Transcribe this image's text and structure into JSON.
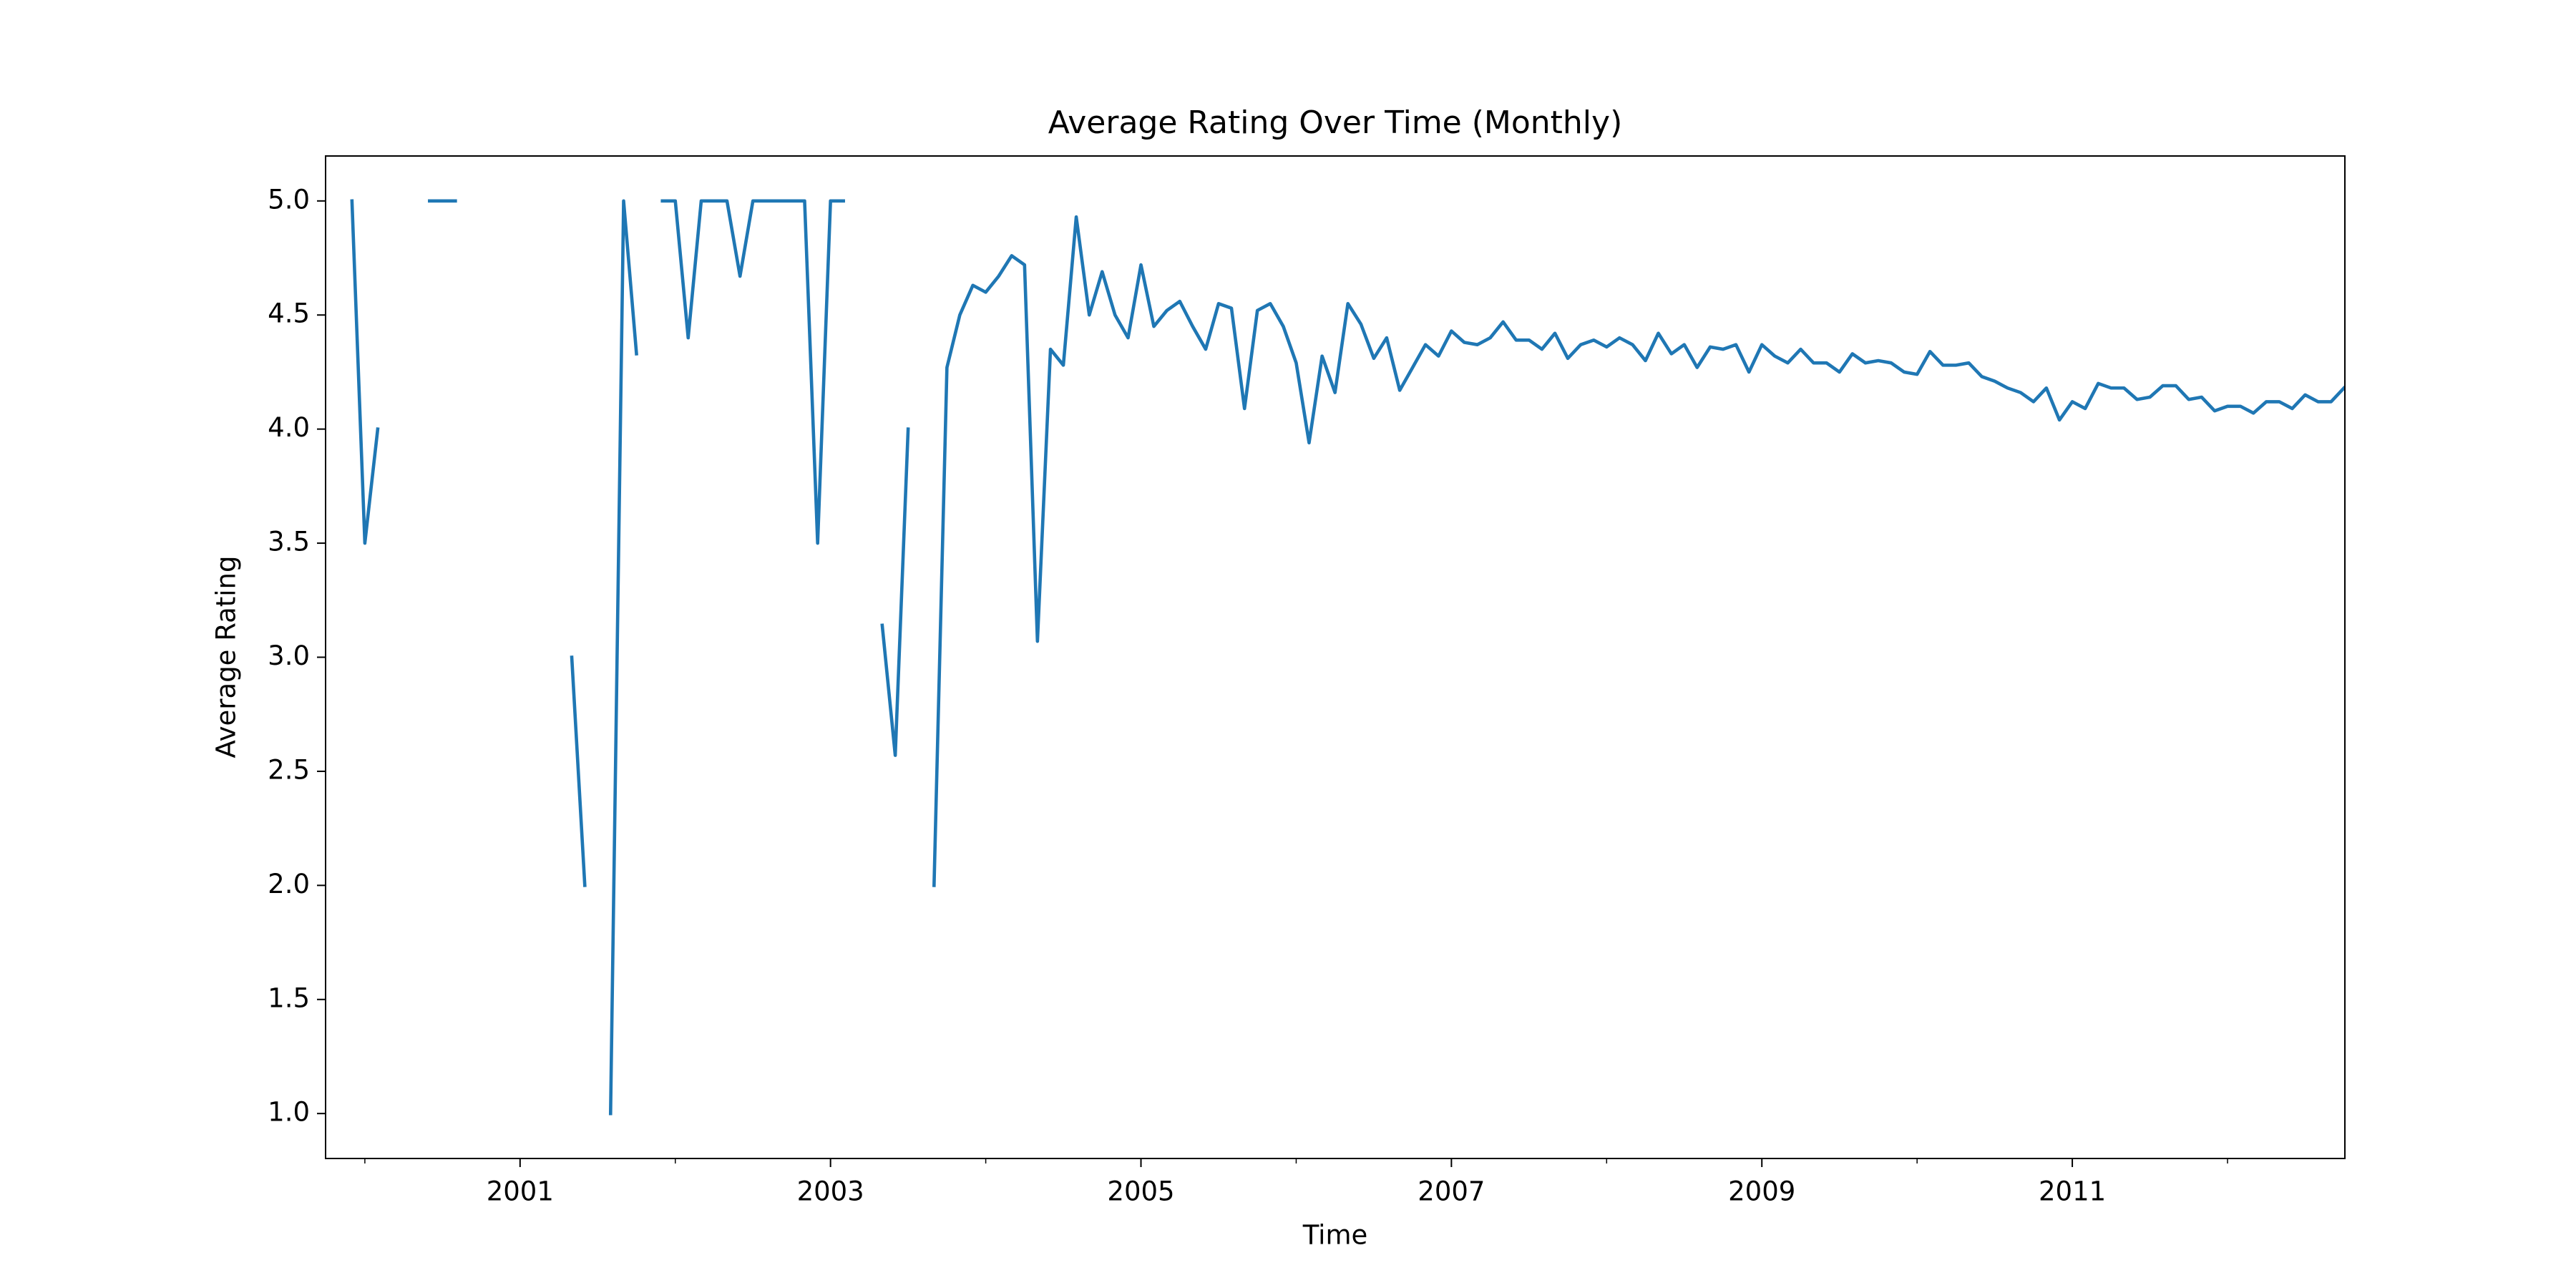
{
  "chart_data": {
    "type": "line",
    "title": "Average Rating Over Time (Monthly)",
    "x_label": "Time",
    "y_label": "Average Rating",
    "x": [
      1999.917,
      2000.0,
      2000.083,
      2000.167,
      2000.25,
      2000.333,
      2000.417,
      2000.5,
      2000.583,
      2000.667,
      2000.75,
      2000.833,
      2000.917,
      2001.0,
      2001.083,
      2001.167,
      2001.25,
      2001.333,
      2001.417,
      2001.5,
      2001.583,
      2001.667,
      2001.75,
      2001.833,
      2001.917,
      2002.0,
      2002.083,
      2002.167,
      2002.25,
      2002.333,
      2002.417,
      2002.5,
      2002.583,
      2002.667,
      2002.75,
      2002.833,
      2002.917,
      2003.0,
      2003.083,
      2003.167,
      2003.25,
      2003.333,
      2003.417,
      2003.5,
      2003.583,
      2003.667,
      2003.75,
      2003.833,
      2003.917,
      2004.0,
      2004.083,
      2004.167,
      2004.25,
      2004.333,
      2004.417,
      2004.5,
      2004.583,
      2004.667,
      2004.75,
      2004.833,
      2004.917,
      2005.0,
      2005.083,
      2005.167,
      2005.25,
      2005.333,
      2005.417,
      2005.5,
      2005.583,
      2005.667,
      2005.75,
      2005.833,
      2005.917,
      2006.0,
      2006.083,
      2006.167,
      2006.25,
      2006.333,
      2006.417,
      2006.5,
      2006.583,
      2006.667,
      2006.75,
      2006.833,
      2006.917,
      2007.0,
      2007.083,
      2007.167,
      2007.25,
      2007.333,
      2007.417,
      2007.5,
      2007.583,
      2007.667,
      2007.75,
      2007.833,
      2007.917,
      2008.0,
      2008.083,
      2008.167,
      2008.25,
      2008.333,
      2008.417,
      2008.5,
      2008.583,
      2008.667,
      2008.75,
      2008.833,
      2008.917,
      2009.0,
      2009.083,
      2009.167,
      2009.25,
      2009.333,
      2009.417,
      2009.5,
      2009.583,
      2009.667,
      2009.75,
      2009.833,
      2009.917,
      2010.0,
      2010.083,
      2010.167,
      2010.25,
      2010.333,
      2010.417,
      2010.5,
      2010.583,
      2010.667,
      2010.75,
      2010.833,
      2010.917,
      2011.0,
      2011.083,
      2011.167,
      2011.25,
      2011.333,
      2011.417,
      2011.5,
      2011.583,
      2011.667,
      2011.75,
      2011.833,
      2011.917,
      2012.0,
      2012.083,
      2012.167,
      2012.25,
      2012.333,
      2012.417,
      2012.5,
      2012.583,
      2012.667,
      2012.75
    ],
    "series": [
      {
        "color": "#1f77b4",
        "values": [
          5.0,
          3.5,
          4.0,
          null,
          null,
          null,
          5.0,
          5.0,
          5.0,
          null,
          null,
          null,
          null,
          null,
          null,
          null,
          null,
          3.0,
          2.0,
          null,
          1.0,
          5.0,
          4.33,
          null,
          5.0,
          5.0,
          4.4,
          5.0,
          5.0,
          5.0,
          4.67,
          5.0,
          5.0,
          5.0,
          5.0,
          5.0,
          3.5,
          5.0,
          5.0,
          null,
          null,
          3.14,
          2.57,
          4.0,
          null,
          2.0,
          4.27,
          4.5,
          4.63,
          4.6,
          4.67,
          4.76,
          4.72,
          3.07,
          4.35,
          4.28,
          4.93,
          4.5,
          4.69,
          4.5,
          4.4,
          4.72,
          4.45,
          4.52,
          4.56,
          4.45,
          4.35,
          4.55,
          4.53,
          4.09,
          4.52,
          4.55,
          4.45,
          4.29,
          3.94,
          4.32,
          4.16,
          4.55,
          4.46,
          4.31,
          4.4,
          4.17,
          4.27,
          4.37,
          4.32,
          4.43,
          4.38,
          4.37,
          4.4,
          4.47,
          4.39,
          4.39,
          4.35,
          4.42,
          4.31,
          4.37,
          4.39,
          4.36,
          4.4,
          4.37,
          4.3,
          4.42,
          4.33,
          4.37,
          4.27,
          4.36,
          4.35,
          4.37,
          4.25,
          4.37,
          4.32,
          4.29,
          4.35,
          4.29,
          4.29,
          4.25,
          4.33,
          4.29,
          4.3,
          4.29,
          4.25,
          4.24,
          4.34,
          4.28,
          4.28,
          4.29,
          4.23,
          4.21,
          4.18,
          4.16,
          4.12,
          4.18,
          4.04,
          4.12,
          4.09,
          4.2,
          4.18,
          4.18,
          4.13,
          4.14,
          4.19,
          4.19,
          4.13,
          4.14,
          4.08,
          4.1,
          4.1,
          4.07,
          4.12,
          4.12,
          4.09,
          4.15,
          4.12,
          4.12,
          4.18
        ]
      }
    ],
    "xlim": [
      1999.747,
      2012.756
    ],
    "xticks": [
      2001,
      2003,
      2005,
      2007,
      2009,
      2011
    ],
    "xminorticks": [
      2000,
      2002,
      2004,
      2006,
      2008,
      2010,
      2012
    ],
    "ylim": [
      0.803,
      5.197
    ],
    "yticks": [
      {
        "value": 1,
        "label": "1.0"
      },
      {
        "value": 1.5,
        "label": "1.5"
      },
      {
        "value": 2,
        "label": "2.0"
      },
      {
        "value": 2.5,
        "label": "2.5"
      },
      {
        "value": 3,
        "label": "3.0"
      },
      {
        "value": 3.5,
        "label": "3.5"
      },
      {
        "value": 4,
        "label": "4.0"
      },
      {
        "value": 4.5,
        "label": "4.5"
      },
      {
        "value": 5,
        "label": "5.0"
      }
    ],
    "grid": false
  }
}
